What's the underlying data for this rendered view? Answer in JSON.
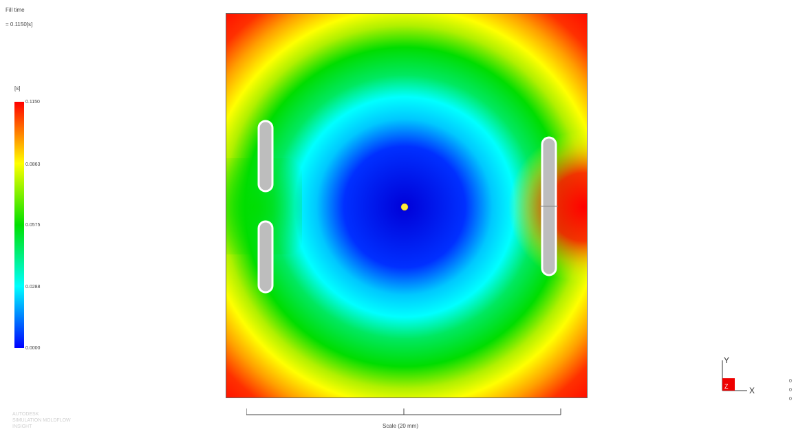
{
  "result": {
    "title": "Fill time",
    "value": "= 0.1150[s]"
  },
  "legend": {
    "unit": "[s]",
    "ticks": [
      "0.1150",
      "0.0863",
      "0.0575",
      "0.0288",
      "0.0000"
    ],
    "colors": [
      "#ff0000",
      "#ffff00",
      "#00e000",
      "#00ffff",
      "#0000ff"
    ]
  },
  "scale": {
    "label": "Scale (20 mm)"
  },
  "triad": {
    "y_label": "Y",
    "x_label": "X",
    "z_label": "Z"
  },
  "corner_values": [
    "0",
    "0",
    "0"
  ],
  "watermark": {
    "lines": [
      "AUTODESK",
      "SIMULATION MOLDFLOW",
      "INSIGHT"
    ]
  }
}
